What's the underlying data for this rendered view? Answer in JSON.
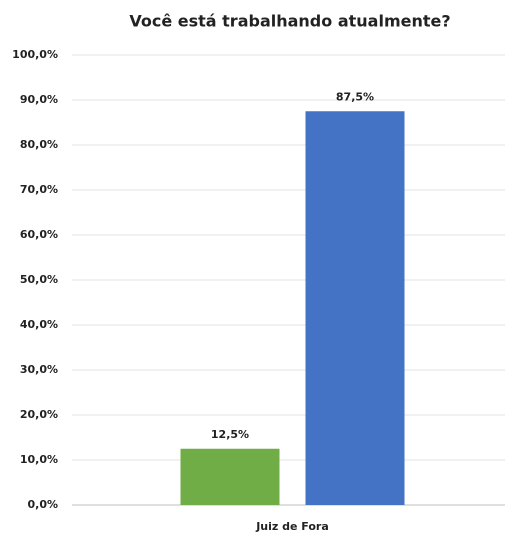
{
  "chart_data": {
    "type": "bar",
    "title": "Você está trabalhando atualmente?",
    "categories": [
      "Juiz de Fora"
    ],
    "series": [
      {
        "color": "#70ad47",
        "values": [
          12.5
        ],
        "value_labels": [
          "12,5%"
        ]
      },
      {
        "color": "#4472c4",
        "values": [
          87.5
        ],
        "value_labels": [
          "87,5%"
        ]
      }
    ],
    "ylim": [
      0,
      100
    ],
    "yticks": [
      {
        "value": 0,
        "label": "0,0%"
      },
      {
        "value": 10,
        "label": "10,0%"
      },
      {
        "value": 20,
        "label": "20,0%"
      },
      {
        "value": 30,
        "label": "30,0%"
      },
      {
        "value": 40,
        "label": "40,0%"
      },
      {
        "value": 50,
        "label": "50,0%"
      },
      {
        "value": 60,
        "label": "60,0%"
      },
      {
        "value": 70,
        "label": "70,0%"
      },
      {
        "value": 80,
        "label": "80,0%"
      },
      {
        "value": 90,
        "label": "90,0%"
      },
      {
        "value": 100,
        "label": "100,0%"
      }
    ],
    "grid": true
  }
}
